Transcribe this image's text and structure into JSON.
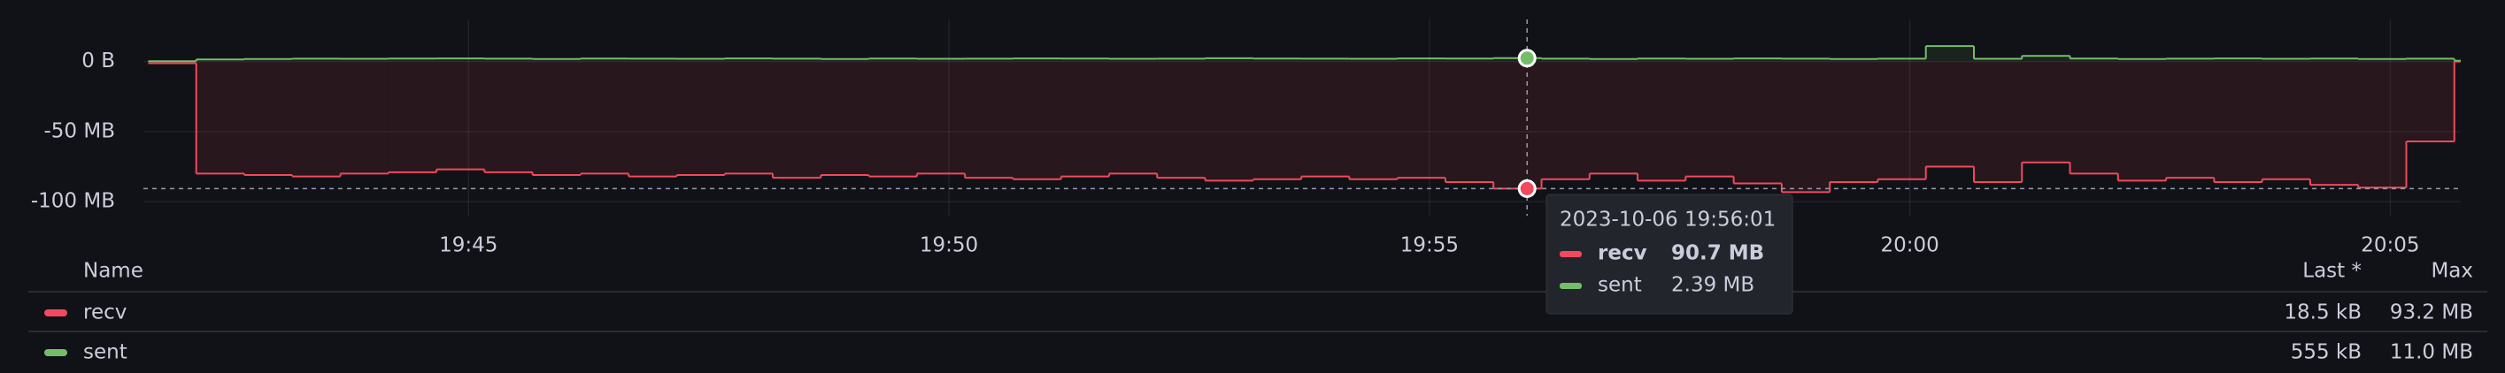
{
  "chart_data": {
    "type": "step-area",
    "x": [
      "19:41:40",
      "19:42:10",
      "19:42:40",
      "19:43:10",
      "19:43:40",
      "19:44:10",
      "19:44:40",
      "19:45:10",
      "19:45:40",
      "19:46:10",
      "19:46:40",
      "19:47:10",
      "19:47:40",
      "19:48:10",
      "19:48:40",
      "19:49:10",
      "19:49:40",
      "19:50:10",
      "19:50:40",
      "19:51:10",
      "19:51:40",
      "19:52:10",
      "19:52:40",
      "19:53:10",
      "19:53:40",
      "19:54:10",
      "19:54:40",
      "19:55:10",
      "19:55:40",
      "19:56:10",
      "19:56:40",
      "19:57:10",
      "19:57:40",
      "19:58:10",
      "19:58:40",
      "19:59:10",
      "19:59:40",
      "20:00:10",
      "20:00:40",
      "20:01:10",
      "20:01:40",
      "20:02:10",
      "20:02:40",
      "20:03:10",
      "20:03:40",
      "20:04:10",
      "20:04:40",
      "20:05:10",
      "20:05:40"
    ],
    "series": [
      {
        "name": "recv",
        "color": "#f2495c",
        "values": [
          -1.2,
          -80,
          -81,
          -82,
          -80,
          -79,
          -77,
          -79,
          -81,
          -80,
          -82,
          -81,
          -80,
          -83,
          -81,
          -82,
          -80,
          -83,
          -84,
          -82,
          -80,
          -83,
          -85,
          -84,
          -82,
          -84,
          -83,
          -86,
          -90.7,
          -84,
          -80,
          -85,
          -82,
          -87,
          -93.2,
          -86,
          -84,
          -75,
          -86,
          -72,
          -80,
          -85,
          -83,
          -86,
          -84,
          -88,
          -90,
          -57,
          -0.0185
        ]
      },
      {
        "name": "sent",
        "color": "#73bf69",
        "values": [
          0.2,
          1.5,
          1.8,
          2.0,
          1.9,
          2.1,
          2.2,
          2.0,
          1.8,
          2.1,
          2.0,
          1.9,
          2.2,
          2.0,
          1.8,
          2.1,
          1.9,
          2.0,
          2.2,
          2.1,
          1.9,
          2.0,
          2.3,
          2.1,
          2.0,
          1.9,
          2.2,
          2.1,
          2.39,
          2.0,
          1.8,
          2.1,
          1.9,
          2.2,
          2.0,
          1.8,
          2.0,
          11.0,
          1.9,
          4.0,
          2.1,
          1.8,
          2.0,
          2.2,
          1.9,
          2.1,
          1.8,
          2.0,
          0.555
        ]
      }
    ],
    "xlim": [
      "19:41:37",
      "20:05:44"
    ],
    "xticks": [
      "19:45",
      "19:50",
      "19:55",
      "20:00",
      "20:05"
    ],
    "ylim": [
      -110,
      30
    ],
    "yticks": [
      {
        "value": 0,
        "label": "0 B"
      },
      {
        "value": -50,
        "label": "-50 MB"
      },
      {
        "value": -100,
        "label": "-100 MB"
      }
    ],
    "grid": true,
    "legend": {
      "columns": [
        "Name",
        "Last *",
        "Max"
      ],
      "rows": [
        {
          "last": "18.5 kB",
          "max": "93.2 MB"
        },
        {
          "last": "555 kB",
          "max": "11.0 MB"
        }
      ]
    },
    "tooltip": {
      "time": "2023-10-06 19:56:01",
      "values": [
        "90.7 MB",
        "2.39 MB"
      ]
    }
  }
}
